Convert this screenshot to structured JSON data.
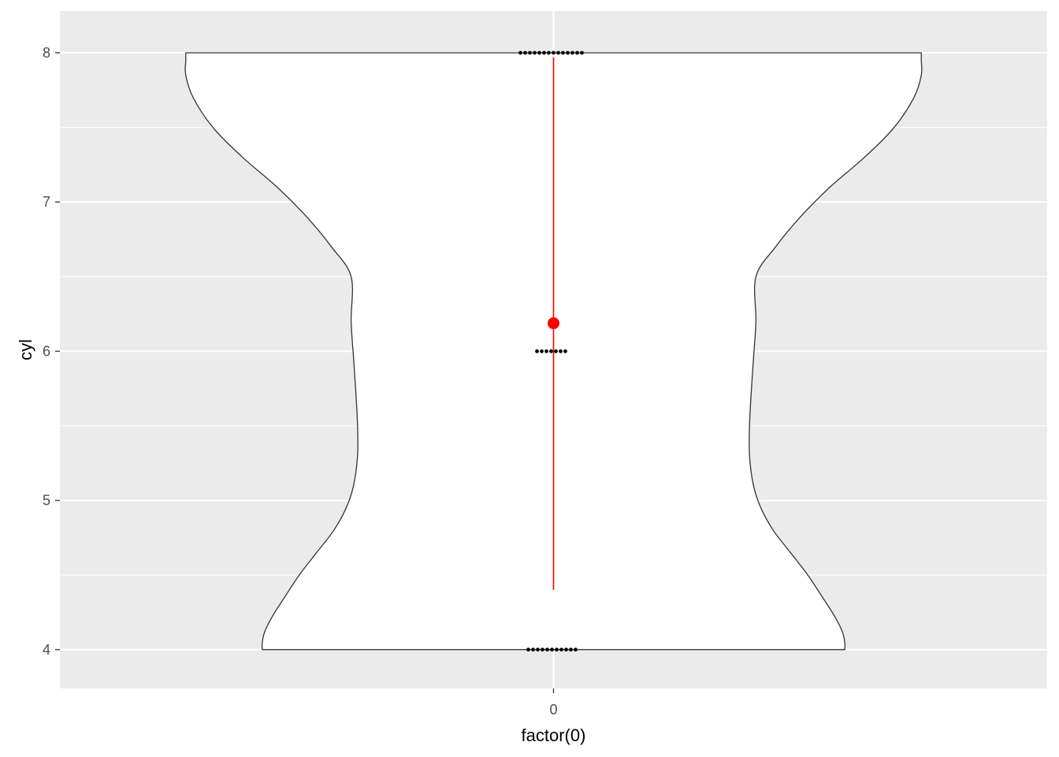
{
  "chart_data": {
    "type": "violin",
    "xlabel": "factor(0)",
    "ylabel": "cyl",
    "categories": [
      "0"
    ],
    "ylim": [
      3.74,
      8.28
    ],
    "yticks": [
      4,
      5,
      6,
      7,
      8
    ],
    "ytick_labels": [
      "4",
      "5",
      "6",
      "7",
      "8"
    ],
    "grid": true,
    "panel_background": "#EBEBEB",
    "violin": {
      "fill": "#FFFFFF",
      "outline": "#333333",
      "density_profile": [
        {
          "y": 4.0,
          "half_width": 0.59
        },
        {
          "y": 4.05,
          "half_width": 0.59
        },
        {
          "y": 4.12,
          "half_width": 0.585
        },
        {
          "y": 4.22,
          "half_width": 0.57
        },
        {
          "y": 4.35,
          "half_width": 0.545
        },
        {
          "y": 4.5,
          "half_width": 0.515
        },
        {
          "y": 4.65,
          "half_width": 0.48
        },
        {
          "y": 4.8,
          "half_width": 0.445
        },
        {
          "y": 4.95,
          "half_width": 0.42
        },
        {
          "y": 5.1,
          "half_width": 0.405
        },
        {
          "y": 5.3,
          "half_width": 0.397
        },
        {
          "y": 5.5,
          "half_width": 0.397
        },
        {
          "y": 5.7,
          "half_width": 0.4
        },
        {
          "y": 5.95,
          "half_width": 0.405
        },
        {
          "y": 6.2,
          "half_width": 0.41
        },
        {
          "y": 6.5,
          "half_width": 0.41
        },
        {
          "y": 6.7,
          "half_width": 0.45
        },
        {
          "y": 6.9,
          "half_width": 0.5
        },
        {
          "y": 7.1,
          "half_width": 0.56
        },
        {
          "y": 7.3,
          "half_width": 0.63
        },
        {
          "y": 7.5,
          "half_width": 0.69
        },
        {
          "y": 7.7,
          "half_width": 0.73
        },
        {
          "y": 7.85,
          "half_width": 0.745
        },
        {
          "y": 7.95,
          "half_width": 0.745
        },
        {
          "y": 8.0,
          "half_width": 0.745
        }
      ]
    },
    "dots": {
      "color": "#000000",
      "groups": [
        {
          "y": 8,
          "count": 14
        },
        {
          "y": 6,
          "count": 7
        },
        {
          "y": 4,
          "count": 11
        }
      ]
    },
    "summary": {
      "color": "#FF0000",
      "mean": 6.1875,
      "lower": 4.4,
      "upper": 7.97
    }
  }
}
